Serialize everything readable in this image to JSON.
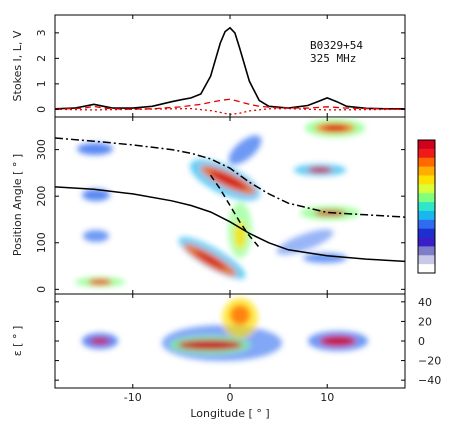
{
  "chart_data": {
    "type": "line",
    "annotation": [
      "B0329+54",
      "325 MHz"
    ],
    "colors": {
      "stokes_I": "#000000",
      "stokes_L": "#e00000",
      "stokes_V": "#e00000",
      "pa_solid": "#000000",
      "pa_dashdot": "#000000",
      "pa_dashed": "#000000"
    },
    "xlabel": "Longitude [ ° ]",
    "xlim": [
      -18,
      18
    ],
    "xticks": [
      "-10",
      "0",
      "10"
    ],
    "panels": [
      {
        "id": "profile",
        "ylabel": "Stokes I, L, V",
        "ylim": [
          -0.3,
          3.7
        ],
        "yticks": [
          "0",
          "1",
          "2",
          "3"
        ],
        "series": [
          {
            "x": [
              -18,
              -16,
              -15,
              -14,
              -13,
              -12,
              -10,
              -8,
              -6,
              -5,
              -4,
              -3,
              -2,
              -1,
              -0.5,
              0,
              0.5,
              1,
              2,
              3,
              4,
              6,
              8,
              9,
              10,
              11,
              12,
              14,
              16,
              18
            ],
            "y": [
              0.02,
              0.05,
              0.12,
              0.2,
              0.12,
              0.05,
              0.05,
              0.12,
              0.3,
              0.38,
              0.45,
              0.6,
              1.3,
              2.6,
              3.05,
              3.2,
              3.0,
              2.4,
              1.1,
              0.35,
              0.12,
              0.05,
              0.15,
              0.3,
              0.45,
              0.3,
              0.12,
              0.04,
              0.02,
              0.02
            ],
            "style": "solid"
          },
          {
            "x": [
              -18,
              -15,
              -14,
              -13,
              -11,
              -8,
              -5,
              -3,
              -1,
              0,
              1,
              2,
              3,
              5,
              8,
              10,
              12,
              15,
              18
            ],
            "y": [
              0.0,
              0.05,
              0.12,
              0.05,
              0.0,
              0.02,
              0.1,
              0.2,
              0.35,
              0.4,
              0.3,
              0.2,
              0.12,
              0.06,
              0.05,
              0.1,
              0.05,
              0.02,
              0.0
            ],
            "style": "dashed"
          },
          {
            "x": [
              -18,
              -14,
              -10,
              -6,
              -4,
              -2,
              -1,
              0,
              1,
              2,
              4,
              6,
              10,
              14,
              18
            ],
            "y": [
              0.0,
              -0.02,
              0.0,
              0.02,
              0.03,
              -0.05,
              -0.12,
              -0.2,
              -0.15,
              -0.06,
              0.02,
              0.03,
              -0.02,
              -0.01,
              0.0
            ],
            "style": "dotted"
          }
        ]
      },
      {
        "id": "position_angle",
        "ylabel": "Position Angle [ ° ]",
        "ylim": [
          -10,
          370
        ],
        "yticks": [
          "0",
          "100",
          "200",
          "300"
        ],
        "curves": [
          {
            "x": [
              -18,
              -14,
              -10,
              -6,
              -4,
              -2,
              0,
              2,
              4,
              6,
              10,
              14,
              18
            ],
            "y": [
              220,
              215,
              205,
              190,
              180,
              166,
              145,
              120,
              100,
              85,
              72,
              65,
              60
            ],
            "style": "solid"
          },
          {
            "x": [
              -18,
              -14,
              -10,
              -6,
              -4,
              -2,
              0,
              2,
              4,
              6,
              10,
              14,
              18
            ],
            "y": [
              325,
              318,
              310,
              300,
              292,
              280,
              260,
              230,
              205,
              185,
              165,
              160,
              155
            ],
            "style": "dashdot"
          },
          {
            "x": [
              -2,
              -1,
              0,
              1,
              2,
              3
            ],
            "y": [
              245,
              215,
              180,
              145,
              115,
              90
            ],
            "style": "dashed"
          }
        ],
        "colorbar_colors": [
          "#d0021b",
          "#f01a1a",
          "#ff6a00",
          "#ffae00",
          "#ffe000",
          "#d8ff3a",
          "#7eff7e",
          "#2ee6c8",
          "#19b6f0",
          "#2f6cf0",
          "#1d2fd0",
          "#3a1ec8",
          "#7e7ec8",
          "#c8c8e8",
          "#ffffff"
        ]
      },
      {
        "id": "ellipticity",
        "ylabel": "ε [ ° ]",
        "ylim": [
          -48,
          48
        ],
        "yticks": [
          "40",
          "20",
          "0",
          "−20",
          "−40"
        ]
      }
    ]
  }
}
